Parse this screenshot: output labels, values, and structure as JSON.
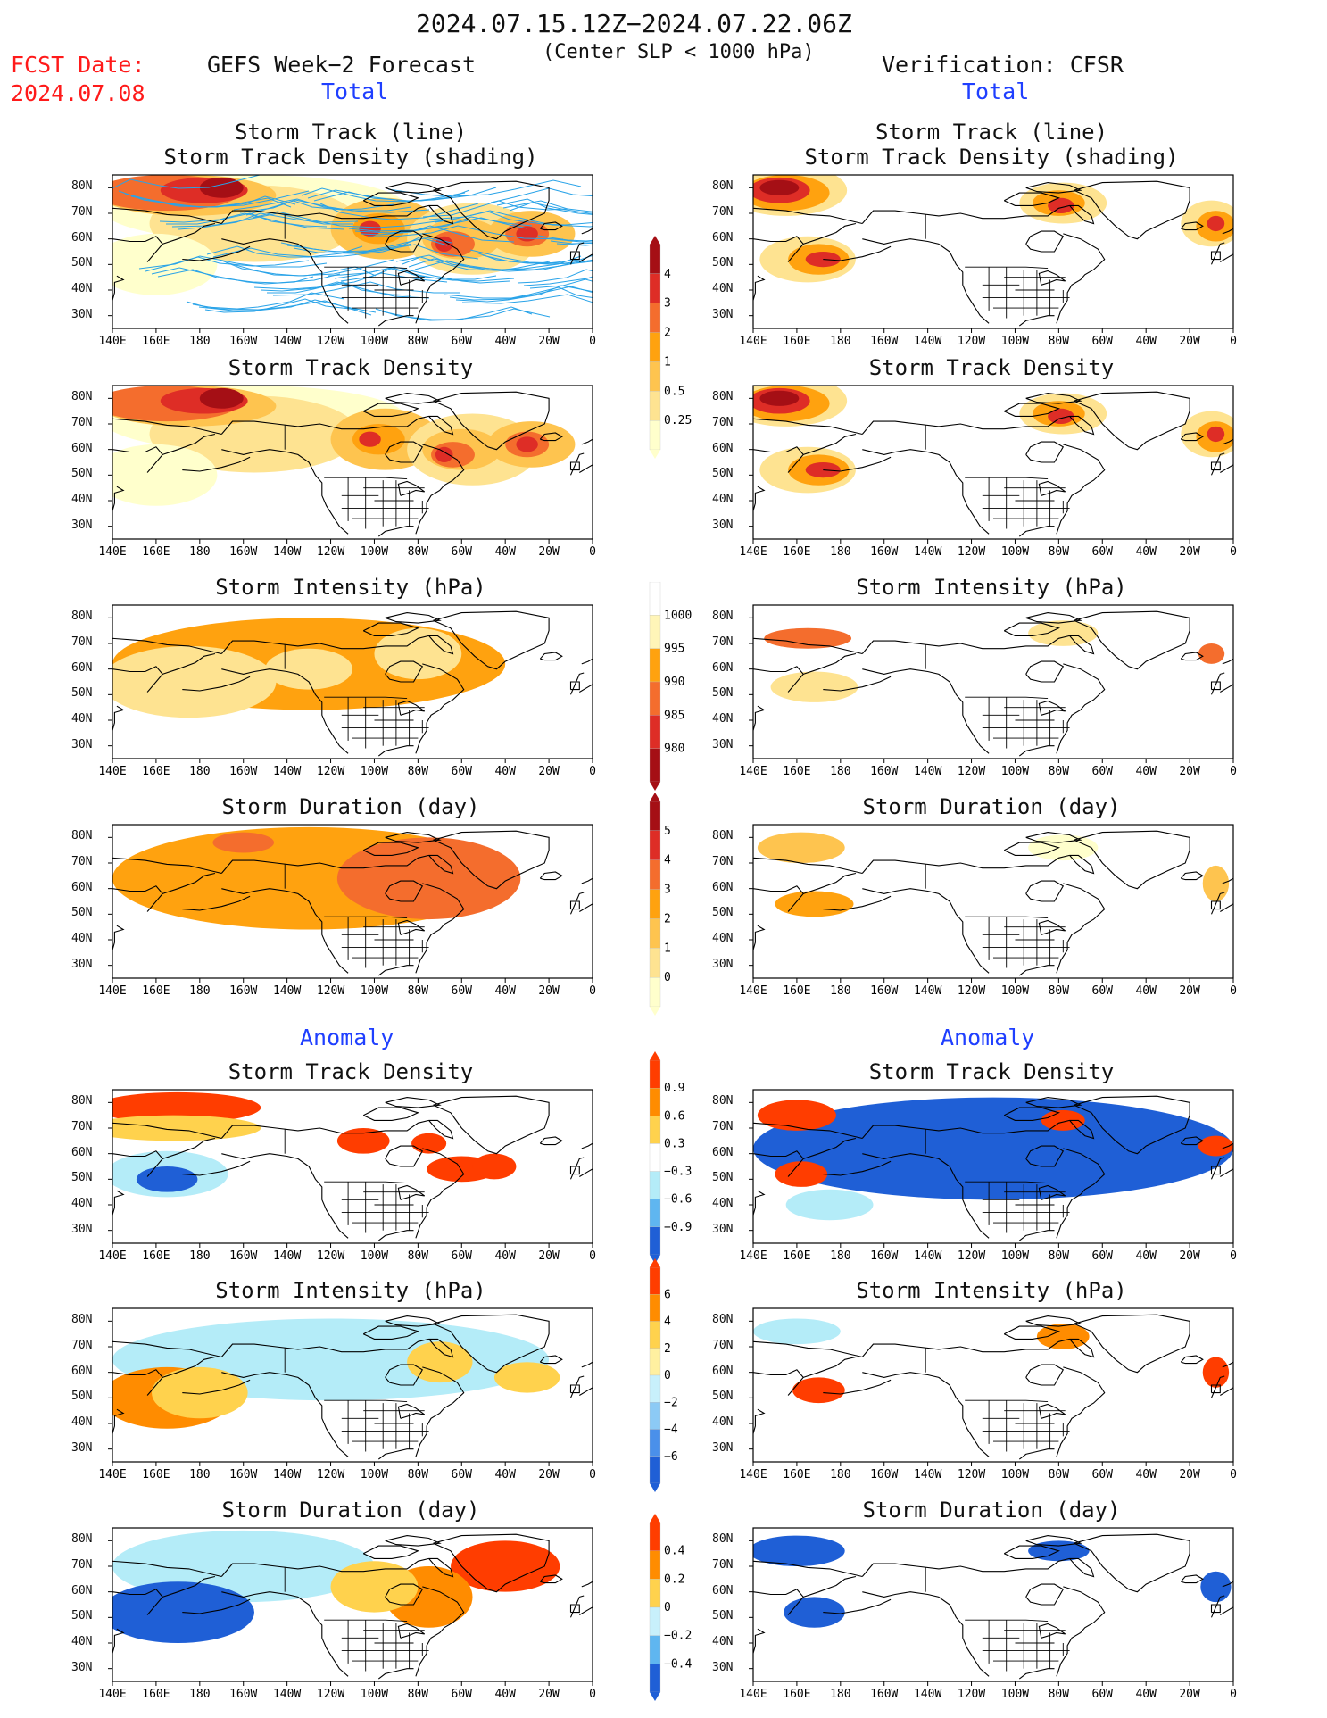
{
  "header": {
    "date_range": "2024.07.15.12Z−2024.07.22.06Z",
    "subtitle": "(Center SLP < 1000 hPa)",
    "fcst_label": "FCST Date:",
    "fcst_date": "2024.07.08",
    "left_title": "GEFS Week−2 Forecast",
    "right_title": "Verification: CFSR",
    "total_left": "Total",
    "total_right": "Total",
    "anomaly_left": "Anomaly",
    "anomaly_right": "Anomaly"
  },
  "panel_titles": {
    "track_line": "Storm Track (line)",
    "track_density_shading": "Storm Track Density (shading)",
    "track_density": "Storm Track Density",
    "intensity": "Storm Intensity (hPa)",
    "duration": "Storm Duration (day)"
  },
  "axes": {
    "lon_labels": [
      "140E",
      "160E",
      "180",
      "160W",
      "140W",
      "120W",
      "100W",
      "80W",
      "60W",
      "40W",
      "20W",
      "0"
    ],
    "lat_labels": [
      "80N",
      "70N",
      "60N",
      "50N",
      "40N",
      "30N"
    ]
  },
  "colorbars": {
    "density": {
      "labels": [
        "4",
        "3",
        "2",
        "1",
        "0.5",
        "0.25"
      ],
      "colors": [
        "#a50f15",
        "#de2d26",
        "#f46d2d",
        "#ffa20f",
        "#fec44f",
        "#fee391",
        "#ffffcc"
      ]
    },
    "intensity": {
      "labels": [
        "1000",
        "995",
        "990",
        "985",
        "980"
      ],
      "colors": [
        "#ffffff",
        "#fff5b8",
        "#ffa20f",
        "#f46d2d",
        "#de2d26",
        "#a50f15"
      ]
    },
    "duration": {
      "labels": [
        "5",
        "4",
        "3",
        "2",
        "1",
        "0"
      ],
      "colors": [
        "#a50f15",
        "#de2d26",
        "#f46d2d",
        "#ffa20f",
        "#fec44f",
        "#fee391",
        "#ffffcc"
      ]
    },
    "anom_density": {
      "labels": [
        "0.9",
        "0.6",
        "0.3",
        "−0.3",
        "−0.6",
        "−0.9"
      ],
      "colors": [
        "#ff3d00",
        "#ff8c00",
        "#ffd24d",
        "#ffffff",
        "#b4ecf8",
        "#5fb6f0",
        "#1f5fd6"
      ]
    },
    "anom_intensity": {
      "labels": [
        "6",
        "4",
        "2",
        "0",
        "−2",
        "−4",
        "−6"
      ],
      "colors": [
        "#ff3d00",
        "#ff8c00",
        "#ffd24d",
        "#fff0a0",
        "#c8f0fb",
        "#8ccaf5",
        "#4a90ea",
        "#1f5fd6"
      ]
    },
    "anom_duration": {
      "labels": [
        "0.4",
        "0.2",
        "0",
        "−0.2",
        "−0.4"
      ],
      "colors": [
        "#ff3d00",
        "#ff8c00",
        "#ffd24d",
        "#c8f0fb",
        "#5fb6f0",
        "#1f5fd6"
      ]
    }
  },
  "colors": {
    "dark_red": "#a50f15",
    "red": "#de2d26",
    "orange_red": "#f46d2d",
    "orange": "#ffa20f",
    "light_orange": "#fec44f",
    "yellow": "#fee391",
    "pale": "#ffffcc",
    "track_line": "#29a3e8",
    "anom_red": "#ff3d00",
    "anom_orange": "#ff8c00",
    "anom_yellow": "#ffd24d",
    "anom_lightblue": "#b4ecf8",
    "anom_blue": "#1f5fd6"
  }
}
